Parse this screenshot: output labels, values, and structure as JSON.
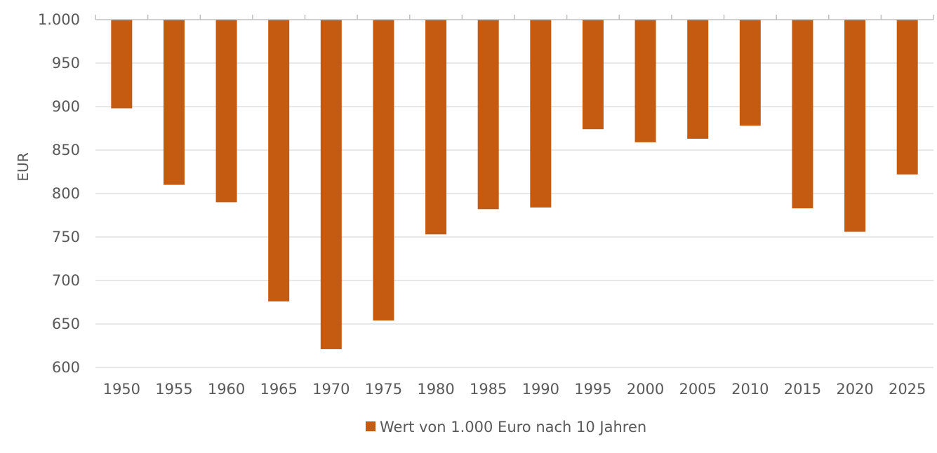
{
  "chart_data": {
    "type": "bar",
    "title": "",
    "xlabel": "",
    "ylabel": "EUR",
    "ylim": [
      600,
      1000
    ],
    "baseline": 1000,
    "y_ticks": [
      1000,
      950,
      900,
      850,
      800,
      750,
      700,
      650,
      600
    ],
    "y_tick_labels": [
      "1.000",
      "950",
      "900",
      "850",
      "800",
      "750",
      "700",
      "650",
      "600"
    ],
    "categories": [
      "1950",
      "1955",
      "1960",
      "1965",
      "1970",
      "1975",
      "1980",
      "1985",
      "1990",
      "1995",
      "2000",
      "2005",
      "2010",
      "2015",
      "2020",
      "2025"
    ],
    "series": [
      {
        "name": "Wert von 1.000 Euro nach 10 Jahren",
        "color": "#c55a11",
        "values": [
          898,
          810,
          790,
          676,
          621,
          654,
          753,
          782,
          784,
          874,
          859,
          863,
          878,
          783,
          756,
          822
        ]
      }
    ],
    "grid": true,
    "legend_position": "bottom"
  },
  "colors": {
    "grid": "#d9d9d9",
    "axis": "#bfbfbf",
    "text": "#595959"
  }
}
